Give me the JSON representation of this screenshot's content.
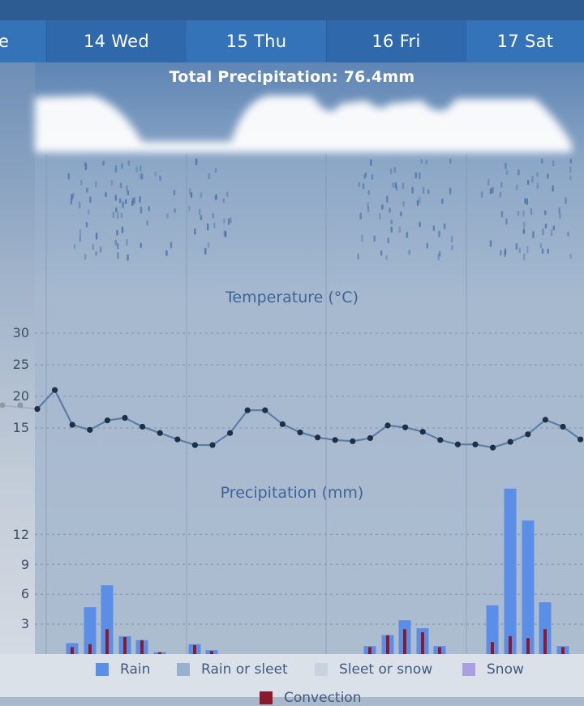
{
  "tabs": [
    {
      "label": "e"
    },
    {
      "label": "14 Wed"
    },
    {
      "label": "15 Thu"
    },
    {
      "label": "16 Fri"
    },
    {
      "label": "17 Sat"
    }
  ],
  "total_precipitation": "Total Precipitation: 76.4mm",
  "colors": {
    "rain": "#5b8ee6",
    "rain_or_sleet": "#97b1cf",
    "sleet_or_snow": "#c9d3e0",
    "snow": "#ab9fe0",
    "convection": "#8b1a2c",
    "temperature_line": "#5a7ea8",
    "temperature_point": "#1f2f45"
  },
  "legend": [
    {
      "label": "Rain",
      "color_key": "rain"
    },
    {
      "label": "Rain or sleet",
      "color_key": "rain_or_sleet"
    },
    {
      "label": "Sleet or snow",
      "color_key": "sleet_or_snow"
    },
    {
      "label": "Snow",
      "color_key": "snow"
    },
    {
      "label": "Convection",
      "color_key": "convection"
    }
  ],
  "chart_data": [
    {
      "type": "line",
      "title": "Temperature (°C)",
      "yticks": [
        15,
        20,
        25,
        30
      ],
      "ylim": [
        12.5,
        30
      ],
      "grid": true,
      "series": [
        {
          "values": [
            18,
            21,
            15.5,
            14.7,
            16.2,
            16.6,
            15.2,
            14.2,
            13.2,
            12.3,
            12.3,
            14.2,
            17.8,
            17.8,
            15.6,
            14.3,
            13.5,
            13.1,
            12.9,
            13.4,
            15.4,
            15.1,
            14.4,
            13.1,
            12.4,
            12.4,
            11.9,
            12.8,
            14,
            16.3,
            15.2,
            13.2
          ]
        }
      ]
    },
    {
      "type": "bar",
      "title": "Precipitation (mm)",
      "yticks": [
        3,
        6,
        9,
        12
      ],
      "ylim": [
        0,
        17
      ],
      "grid": true,
      "series": [
        {
          "name": "Rain",
          "values": [
            1.1,
            4.7,
            6.9,
            1.8,
            1.4,
            0.2,
            1,
            0.4,
            0.8,
            1.9,
            3.4,
            2.6,
            0.8,
            4.9,
            16.6,
            13.4,
            5.2,
            0.8
          ]
        },
        {
          "name": "Convection",
          "values": [
            0.7,
            1,
            2.5,
            1.7,
            1.4,
            0.2,
            0.9,
            0.3,
            0.7,
            1.9,
            2.5,
            2.2,
            0.7,
            1.2,
            1.8,
            1.6,
            2.5,
            0.7
          ]
        }
      ]
    }
  ]
}
